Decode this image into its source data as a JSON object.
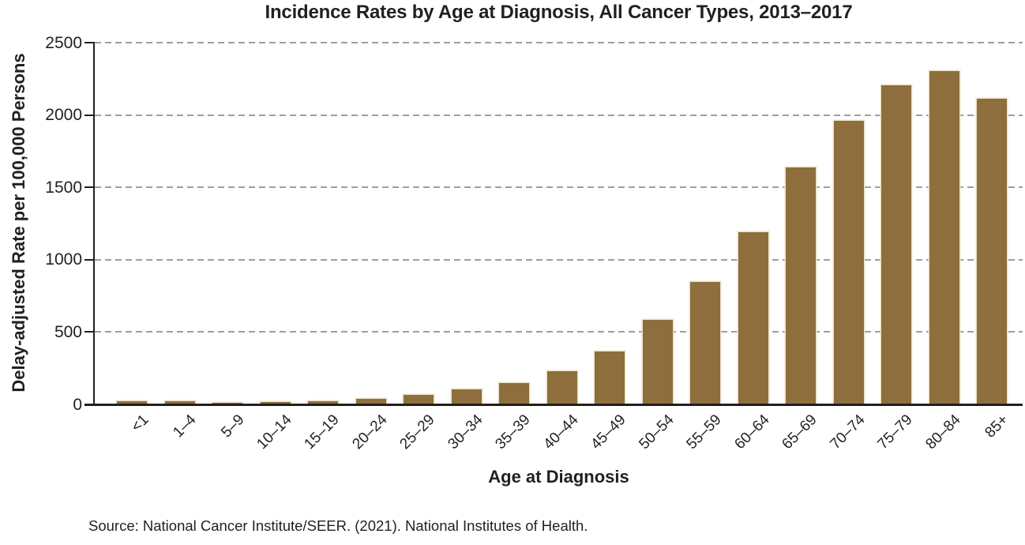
{
  "chart_data": {
    "type": "bar",
    "title": "Incidence Rates by Age at Diagnosis, All Cancer Types, 2013–2017",
    "xlabel": "Age at Diagnosis",
    "ylabel": "Delay-adjusted Rate per 100,000 Persons",
    "source_caption": "Source: National Cancer Institute/SEER. (2021). National Institutes of Health.",
    "categories": [
      "<1",
      "1–4",
      "5–9",
      "10–14",
      "15–19",
      "20–24",
      "25–29",
      "30–34",
      "35–39",
      "40–44",
      "45–49",
      "50–54",
      "55–59",
      "60–64",
      "65–69",
      "70–74",
      "75–79",
      "80–84",
      "85+"
    ],
    "values": [
      24,
      21,
      13,
      15,
      24,
      40,
      66,
      103,
      149,
      232,
      367,
      582,
      845,
      1188,
      1636,
      1960,
      2205,
      2306,
      2111
    ],
    "ylim": [
      0,
      2500
    ],
    "yticks": [
      0,
      500,
      1000,
      1500,
      2000,
      2500
    ],
    "grid": "horizontal dashed",
    "legend": "none",
    "colors": {
      "bar_fill": "#8d6e3c",
      "bar_outline": "#ece2c6",
      "grid_line": "#9c9ea1",
      "axis_line": "#231f20",
      "text": "#231f20"
    }
  }
}
